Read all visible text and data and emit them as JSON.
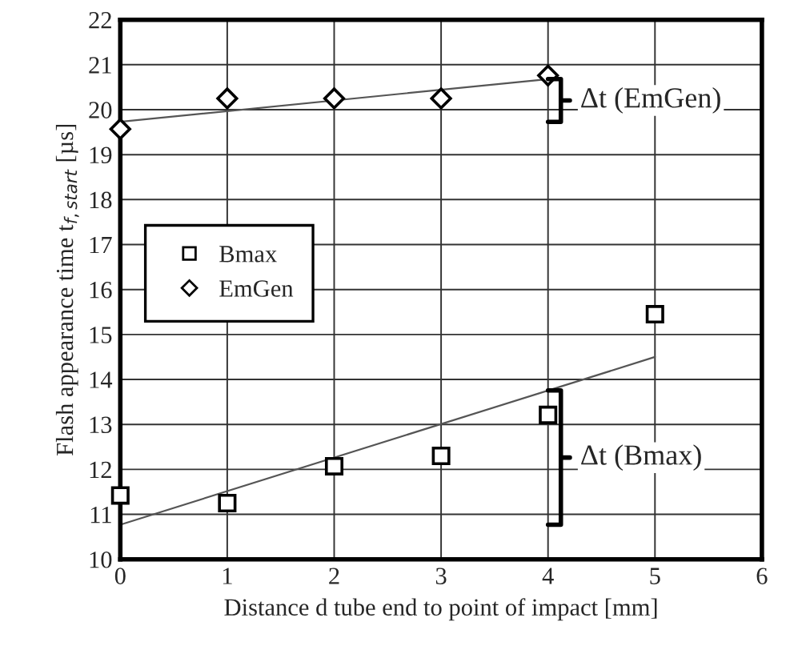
{
  "chart_data": {
    "type": "scatter",
    "xlabel": "Distance d tube end to point of impact [mm]",
    "ylabel": "Flash appearance time t$_{f,start}$ [µs]",
    "x": [
      0,
      1,
      2,
      3,
      4,
      5
    ],
    "series": [
      {
        "name": "Bmax",
        "color": "#000000",
        "marker": "square",
        "values": [
          11.42,
          11.25,
          12.07,
          12.3,
          13.21,
          15.45
        ]
      },
      {
        "name": "EmGen",
        "color": "#000000",
        "marker": "diamond",
        "values": [
          19.57,
          20.25,
          20.25,
          20.25,
          20.76,
          null
        ]
      },
      {
        "type": "line",
        "color": "#555555",
        "x": [
          0,
          5
        ],
        "values": [
          10.77,
          14.5
        ]
      },
      {
        "type": "line",
        "color": "#555555",
        "x": [
          0,
          4
        ],
        "values": [
          19.73,
          20.68
        ]
      }
    ],
    "annotations": [
      "Δt (Bmax)",
      "Δt (EmGen)"
    ],
    "xlim": [
      0,
      6
    ],
    "xticks": [
      0,
      1,
      2,
      3,
      4,
      5,
      6
    ],
    "ylim": [
      10,
      22
    ],
    "yticks": [
      10,
      11,
      12,
      13,
      14,
      15,
      16,
      17,
      18,
      19,
      20,
      21,
      22
    ],
    "grid": true,
    "legend": "left"
  }
}
